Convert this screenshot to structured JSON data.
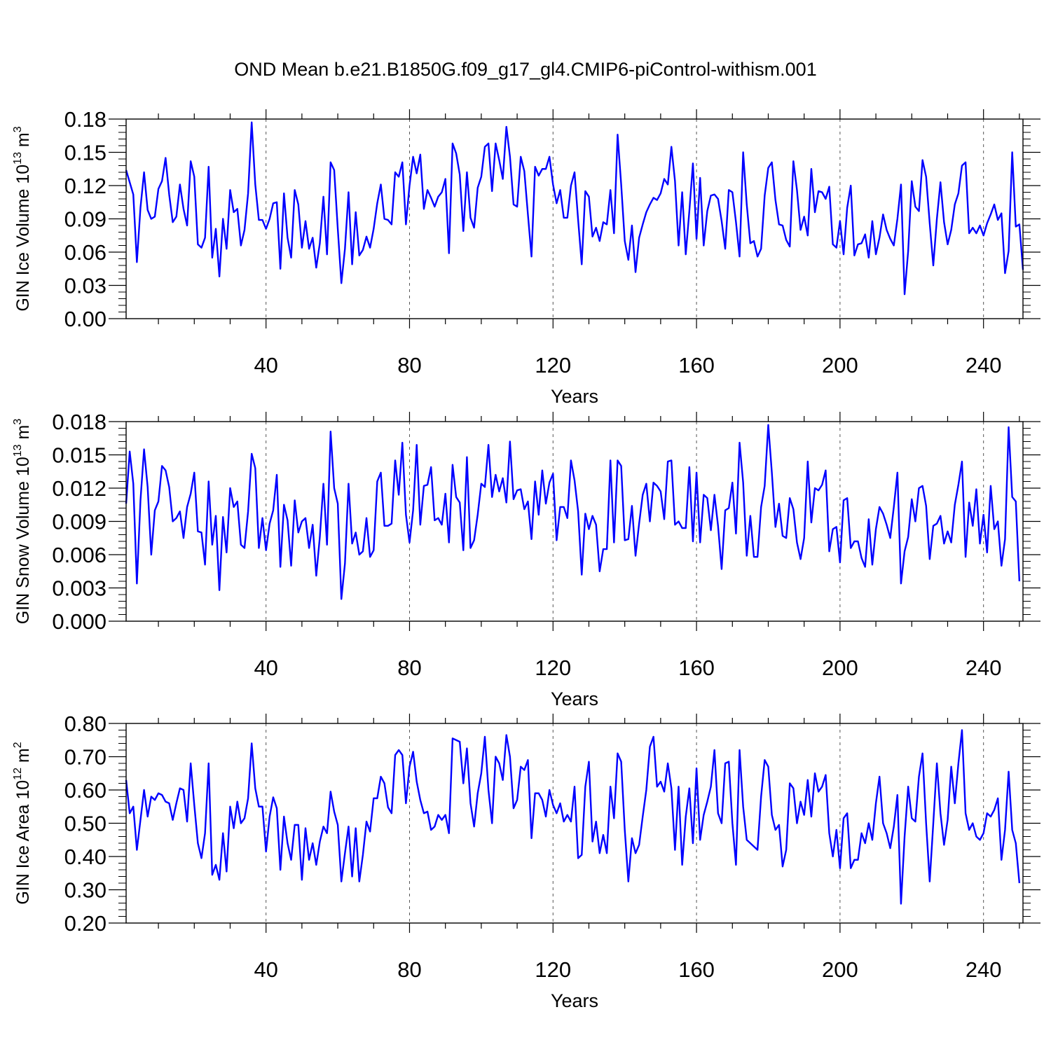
{
  "figure_title": "OND Mean b.e21.B1850G.f09_g17_gl4.CMIP6-piControl-withism.001",
  "chart_data": [
    {
      "type": "line",
      "title": "OND Mean b.e21.B1850G.f09_g17_gl4.CMIP6-piControl-withism.001",
      "xlabel": "Years",
      "ylabel": {
        "base": "GIN Ice Volume 10",
        "exp": "13",
        "unit": " m",
        "unit_exp": "3"
      },
      "xlim": [
        1,
        251
      ],
      "ylim": [
        0,
        0.18
      ],
      "x_start": 1,
      "xticks": [
        40,
        80,
        120,
        160,
        200,
        240
      ],
      "yticks": [
        0.0,
        0.03,
        0.06,
        0.09,
        0.12,
        0.15,
        0.18
      ],
      "ytick_labels": [
        "0.00",
        "0.03",
        "0.06",
        "0.09",
        "0.12",
        "0.15",
        "0.18"
      ],
      "gridlines_x": [
        40,
        80,
        120,
        160,
        200,
        240
      ],
      "series_color": "#0000ff",
      "values": [
        0.134,
        0.123,
        0.112,
        0.051,
        0.1,
        0.132,
        0.098,
        0.09,
        0.092,
        0.117,
        0.124,
        0.145,
        0.112,
        0.087,
        0.092,
        0.121,
        0.099,
        0.084,
        0.142,
        0.128,
        0.067,
        0.064,
        0.073,
        0.137,
        0.055,
        0.081,
        0.038,
        0.09,
        0.063,
        0.116,
        0.096,
        0.099,
        0.066,
        0.08,
        0.113,
        0.177,
        0.121,
        0.089,
        0.089,
        0.081,
        0.09,
        0.104,
        0.105,
        0.045,
        0.113,
        0.073,
        0.055,
        0.116,
        0.103,
        0.064,
        0.088,
        0.063,
        0.073,
        0.046,
        0.068,
        0.11,
        0.058,
        0.141,
        0.134,
        0.081,
        0.032,
        0.063,
        0.114,
        0.049,
        0.096,
        0.057,
        0.062,
        0.074,
        0.064,
        0.081,
        0.104,
        0.121,
        0.09,
        0.089,
        0.085,
        0.132,
        0.128,
        0.141,
        0.085,
        0.12,
        0.146,
        0.131,
        0.148,
        0.099,
        0.116,
        0.109,
        0.101,
        0.11,
        0.114,
        0.126,
        0.059,
        0.158,
        0.149,
        0.13,
        0.079,
        0.132,
        0.091,
        0.082,
        0.118,
        0.128,
        0.155,
        0.158,
        0.115,
        0.158,
        0.143,
        0.126,
        0.173,
        0.146,
        0.103,
        0.101,
        0.146,
        0.133,
        0.094,
        0.056,
        0.137,
        0.129,
        0.135,
        0.135,
        0.146,
        0.121,
        0.104,
        0.116,
        0.091,
        0.091,
        0.12,
        0.132,
        0.089,
        0.049,
        0.115,
        0.11,
        0.074,
        0.082,
        0.07,
        0.087,
        0.085,
        0.116,
        0.077,
        0.166,
        0.121,
        0.07,
        0.053,
        0.084,
        0.042,
        0.073,
        0.085,
        0.096,
        0.103,
        0.109,
        0.107,
        0.113,
        0.126,
        0.121,
        0.155,
        0.124,
        0.066,
        0.114,
        0.058,
        0.097,
        0.14,
        0.072,
        0.127,
        0.066,
        0.097,
        0.111,
        0.112,
        0.108,
        0.088,
        0.063,
        0.116,
        0.114,
        0.087,
        0.056,
        0.15,
        0.103,
        0.068,
        0.07,
        0.056,
        0.063,
        0.111,
        0.136,
        0.141,
        0.107,
        0.085,
        0.084,
        0.071,
        0.065,
        0.142,
        0.116,
        0.08,
        0.092,
        0.075,
        0.135,
        0.096,
        0.115,
        0.114,
        0.108,
        0.119,
        0.067,
        0.064,
        0.088,
        0.058,
        0.1,
        0.12,
        0.057,
        0.067,
        0.068,
        0.076,
        0.055,
        0.088,
        0.058,
        0.073,
        0.094,
        0.08,
        0.072,
        0.066,
        0.09,
        0.121,
        0.022,
        0.061,
        0.124,
        0.101,
        0.097,
        0.143,
        0.128,
        0.086,
        0.048,
        0.09,
        0.123,
        0.087,
        0.067,
        0.08,
        0.103,
        0.113,
        0.138,
        0.141,
        0.077,
        0.082,
        0.077,
        0.084,
        0.075,
        0.086,
        0.094,
        0.103,
        0.089,
        0.095,
        0.041,
        0.061,
        0.15,
        0.083,
        0.085,
        0.044
      ]
    },
    {
      "type": "line",
      "xlabel": "Years",
      "ylabel": {
        "base": "GIN Snow Volume 10",
        "exp": "13",
        "unit": " m",
        "unit_exp": "3"
      },
      "xlim": [
        1,
        251
      ],
      "ylim": [
        0,
        0.018
      ],
      "x_start": 1,
      "xticks": [
        40,
        80,
        120,
        160,
        200,
        240
      ],
      "yticks": [
        0.0,
        0.003,
        0.006,
        0.009,
        0.012,
        0.015,
        0.018
      ],
      "ytick_labels": [
        "0.000",
        "0.003",
        "0.006",
        "0.009",
        "0.012",
        "0.015",
        "0.018"
      ],
      "gridlines_x": [
        40,
        80,
        120,
        160,
        200,
        240
      ],
      "series_color": "#0000ff",
      "values": [
        0.0106,
        0.0153,
        0.0124,
        0.0034,
        0.0109,
        0.0155,
        0.0121,
        0.006,
        0.01,
        0.0108,
        0.014,
        0.0136,
        0.0121,
        0.009,
        0.0093,
        0.0099,
        0.0075,
        0.0103,
        0.0115,
        0.0134,
        0.0081,
        0.008,
        0.0051,
        0.0126,
        0.0069,
        0.0095,
        0.0028,
        0.0094,
        0.0062,
        0.012,
        0.0103,
        0.0108,
        0.0069,
        0.0066,
        0.0099,
        0.0151,
        0.0138,
        0.0066,
        0.0093,
        0.0064,
        0.0088,
        0.01,
        0.0132,
        0.0049,
        0.0105,
        0.0091,
        0.005,
        0.0109,
        0.008,
        0.009,
        0.0093,
        0.0066,
        0.0087,
        0.0041,
        0.0076,
        0.0124,
        0.0069,
        0.0171,
        0.012,
        0.0106,
        0.002,
        0.0052,
        0.0124,
        0.007,
        0.008,
        0.006,
        0.0063,
        0.0093,
        0.0058,
        0.0064,
        0.0126,
        0.0134,
        0.0086,
        0.0086,
        0.0088,
        0.0145,
        0.0114,
        0.0161,
        0.0096,
        0.0071,
        0.01,
        0.0159,
        0.0087,
        0.0122,
        0.0123,
        0.0139,
        0.0091,
        0.0093,
        0.0087,
        0.0115,
        0.0071,
        0.0141,
        0.0112,
        0.0107,
        0.0064,
        0.0148,
        0.0066,
        0.0073,
        0.0096,
        0.0124,
        0.0121,
        0.0159,
        0.0112,
        0.0132,
        0.0117,
        0.0129,
        0.0107,
        0.0162,
        0.011,
        0.0118,
        0.0119,
        0.0101,
        0.0108,
        0.0074,
        0.0126,
        0.0096,
        0.0136,
        0.0106,
        0.0125,
        0.0133,
        0.0073,
        0.0103,
        0.0103,
        0.0093,
        0.0145,
        0.0127,
        0.0099,
        0.0042,
        0.0097,
        0.0083,
        0.0095,
        0.0087,
        0.0045,
        0.0065,
        0.0065,
        0.0145,
        0.0071,
        0.0145,
        0.014,
        0.0073,
        0.0074,
        0.0104,
        0.0059,
        0.0088,
        0.0114,
        0.0124,
        0.009,
        0.0125,
        0.0122,
        0.0117,
        0.0092,
        0.0144,
        0.0145,
        0.0087,
        0.009,
        0.0084,
        0.0084,
        0.0139,
        0.0072,
        0.0134,
        0.0071,
        0.0114,
        0.0111,
        0.0082,
        0.0114,
        0.0086,
        0.0047,
        0.01,
        0.0102,
        0.0125,
        0.0079,
        0.0161,
        0.0125,
        0.0059,
        0.0095,
        0.0058,
        0.0058,
        0.0103,
        0.0122,
        0.0177,
        0.0134,
        0.0085,
        0.0106,
        0.0077,
        0.0075,
        0.0111,
        0.0101,
        0.0071,
        0.0056,
        0.0075,
        0.0144,
        0.0089,
        0.012,
        0.0118,
        0.0123,
        0.0136,
        0.0063,
        0.0083,
        0.0085,
        0.0053,
        0.0109,
        0.0111,
        0.0066,
        0.0072,
        0.0072,
        0.0057,
        0.0049,
        0.0092,
        0.0051,
        0.0083,
        0.0103,
        0.0097,
        0.0087,
        0.0075,
        0.0103,
        0.0134,
        0.0034,
        0.0063,
        0.0076,
        0.011,
        0.009,
        0.012,
        0.0122,
        0.0104,
        0.0056,
        0.0086,
        0.0088,
        0.0095,
        0.007,
        0.0081,
        0.0071,
        0.0105,
        0.0123,
        0.0144,
        0.0058,
        0.0107,
        0.0086,
        0.0119,
        0.007,
        0.0096,
        0.0062,
        0.0122,
        0.0083,
        0.009,
        0.005,
        0.0074,
        0.0175,
        0.0112,
        0.0108,
        0.0036
      ]
    },
    {
      "type": "line",
      "xlabel": "Years",
      "ylabel": {
        "base": "GIN Ice Area 10",
        "exp": "12",
        "unit": " m",
        "unit_exp": "2"
      },
      "xlim": [
        1,
        251
      ],
      "ylim": [
        0.2,
        0.8
      ],
      "x_start": 1,
      "xticks": [
        40,
        80,
        120,
        160,
        200,
        240
      ],
      "yticks": [
        0.2,
        0.3,
        0.4,
        0.5,
        0.6,
        0.7,
        0.8
      ],
      "ytick_labels": [
        "0.20",
        "0.30",
        "0.40",
        "0.50",
        "0.60",
        "0.70",
        "0.80"
      ],
      "gridlines_x": [
        40,
        80,
        120,
        160,
        200,
        240
      ],
      "series_color": "#0000ff",
      "values": [
        0.63,
        0.53,
        0.55,
        0.42,
        0.51,
        0.6,
        0.52,
        0.58,
        0.57,
        0.59,
        0.585,
        0.565,
        0.56,
        0.51,
        0.56,
        0.605,
        0.6,
        0.505,
        0.68,
        0.555,
        0.44,
        0.395,
        0.47,
        0.68,
        0.345,
        0.375,
        0.33,
        0.47,
        0.355,
        0.55,
        0.485,
        0.565,
        0.5,
        0.515,
        0.575,
        0.74,
        0.605,
        0.55,
        0.55,
        0.415,
        0.52,
        0.578,
        0.545,
        0.36,
        0.52,
        0.44,
        0.39,
        0.495,
        0.495,
        0.33,
        0.485,
        0.39,
        0.44,
        0.375,
        0.445,
        0.49,
        0.47,
        0.595,
        0.535,
        0.495,
        0.325,
        0.41,
        0.49,
        0.34,
        0.485,
        0.325,
        0.405,
        0.505,
        0.475,
        0.575,
        0.575,
        0.64,
        0.62,
        0.548,
        0.53,
        0.705,
        0.72,
        0.705,
        0.56,
        0.67,
        0.715,
        0.625,
        0.57,
        0.53,
        0.535,
        0.48,
        0.49,
        0.525,
        0.51,
        0.525,
        0.47,
        0.755,
        0.75,
        0.745,
        0.62,
        0.725,
        0.56,
        0.49,
        0.59,
        0.65,
        0.76,
        0.6,
        0.5,
        0.7,
        0.68,
        0.63,
        0.765,
        0.7,
        0.545,
        0.57,
        0.67,
        0.66,
        0.69,
        0.455,
        0.59,
        0.59,
        0.57,
        0.52,
        0.6,
        0.555,
        0.53,
        0.56,
        0.505,
        0.525,
        0.505,
        0.61,
        0.395,
        0.405,
        0.61,
        0.685,
        0.445,
        0.505,
        0.41,
        0.465,
        0.41,
        0.61,
        0.515,
        0.71,
        0.685,
        0.48,
        0.325,
        0.455,
        0.41,
        0.435,
        0.52,
        0.6,
        0.73,
        0.76,
        0.61,
        0.625,
        0.595,
        0.68,
        0.605,
        0.42,
        0.61,
        0.375,
        0.52,
        0.605,
        0.44,
        0.665,
        0.45,
        0.525,
        0.565,
        0.61,
        0.72,
        0.53,
        0.5,
        0.68,
        0.685,
        0.5,
        0.375,
        0.72,
        0.55,
        0.45,
        0.44,
        0.43,
        0.42,
        0.58,
        0.69,
        0.67,
        0.525,
        0.48,
        0.495,
        0.37,
        0.42,
        0.62,
        0.605,
        0.5,
        0.565,
        0.525,
        0.63,
        0.52,
        0.65,
        0.595,
        0.61,
        0.645,
        0.47,
        0.4,
        0.48,
        0.365,
        0.515,
        0.53,
        0.365,
        0.39,
        0.39,
        0.47,
        0.44,
        0.5,
        0.45,
        0.56,
        0.64,
        0.5,
        0.47,
        0.425,
        0.49,
        0.585,
        0.258,
        0.46,
        0.61,
        0.515,
        0.505,
        0.64,
        0.71,
        0.5,
        0.325,
        0.5,
        0.68,
        0.53,
        0.435,
        0.51,
        0.67,
        0.56,
        0.68,
        0.78,
        0.53,
        0.48,
        0.5,
        0.46,
        0.45,
        0.47,
        0.53,
        0.52,
        0.54,
        0.575,
        0.39,
        0.48,
        0.655,
        0.48,
        0.44,
        0.32
      ]
    }
  ]
}
